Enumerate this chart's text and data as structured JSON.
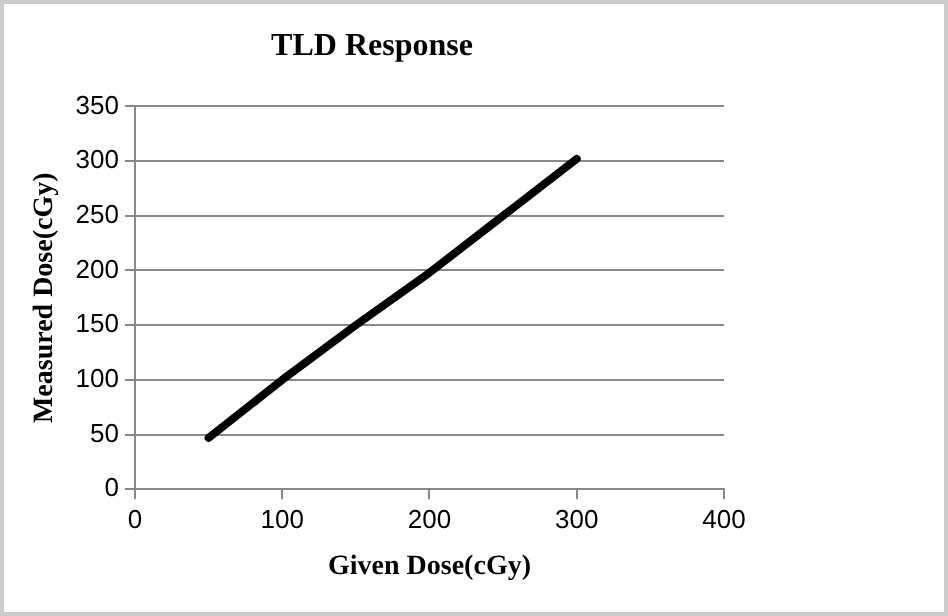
{
  "chart_data": {
    "type": "line",
    "title": "TLD Response",
    "xlabel": "Given Dose(cGy)",
    "ylabel": "Measured Dose(cGy)",
    "x": [
      50,
      100,
      150,
      200,
      250,
      300
    ],
    "series": [
      {
        "color": "#000000",
        "values": [
          47,
          100,
          150,
          198,
          250,
          302
        ]
      }
    ],
    "xlim": [
      0,
      400
    ],
    "xticks": [
      0,
      100,
      200,
      300,
      400
    ],
    "ylim": [
      0,
      350
    ],
    "yticks": [
      0,
      50,
      100,
      150,
      200,
      250,
      300,
      350
    ],
    "grid": "y",
    "legend": false,
    "marker": "none",
    "line_style": "solid"
  }
}
